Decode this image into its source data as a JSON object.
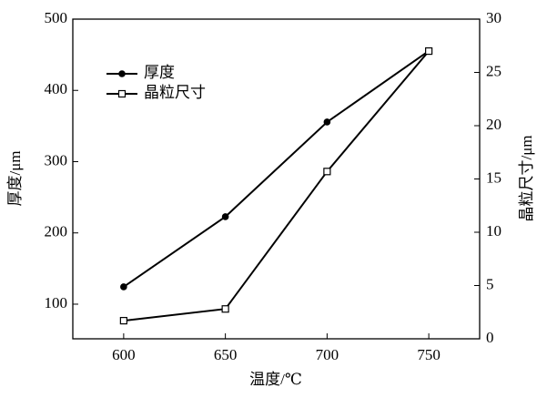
{
  "chart_data": {
    "type": "line",
    "x_label": "温度/℃",
    "y_label": "厚度/μm",
    "y2_label": "晶粒尺寸/μm",
    "x": [
      600,
      650,
      700,
      750
    ],
    "xlim": [
      575,
      775
    ],
    "xticks": [
      600,
      650,
      700,
      750
    ],
    "ylim": [
      51.4,
      500
    ],
    "yticks": [
      100,
      200,
      300,
      400,
      500
    ],
    "y2lim": [
      0,
      30
    ],
    "y2ticks": [
      0,
      5,
      10,
      15,
      20,
      25,
      30
    ],
    "legend": "upper-left",
    "series": [
      {
        "name": "厚度",
        "color": "#000000",
        "marker": "filled-circle",
        "values": [
          124.3,
          222.7,
          355.6,
          455.3
        ]
      },
      {
        "name": "晶粒尺寸",
        "color": "#000000",
        "marker": "open-square",
        "axis": "y2",
        "values": [
          1.7,
          2.8,
          15.7,
          27.0
        ]
      }
    ]
  }
}
